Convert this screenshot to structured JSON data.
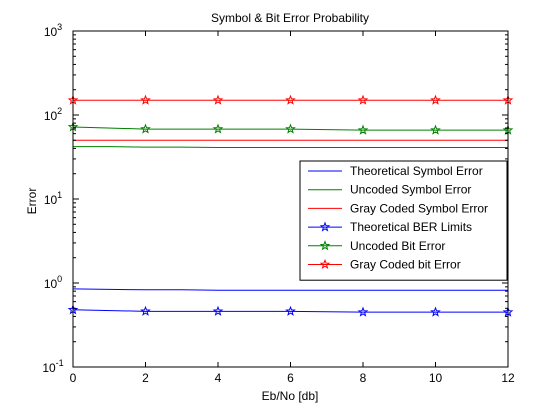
{
  "chart_data": {
    "type": "line",
    "title": "Symbol & Bit Error Probability",
    "xlabel": "Eb/No [db]",
    "ylabel": "Error",
    "yscale": "log",
    "xlim": [
      0,
      12
    ],
    "ylim": [
      0.1,
      1000
    ],
    "grid": false,
    "legend_position": "right",
    "x_ticks": [
      0,
      2,
      4,
      6,
      8,
      10,
      12
    ],
    "y_ticks": [
      {
        "value": 0.1,
        "base": "10",
        "exp": "-1"
      },
      {
        "value": 1,
        "base": "10",
        "exp": "0"
      },
      {
        "value": 10,
        "base": "10",
        "exp": "1"
      },
      {
        "value": 100,
        "base": "10",
        "exp": "2"
      },
      {
        "value": 1000,
        "base": "10",
        "exp": "3"
      }
    ],
    "series": [
      {
        "name": "Theoretical Symbol Error",
        "color": "#0000ff",
        "marker": "none",
        "x": [
          0,
          1,
          2,
          3,
          4,
          5,
          6,
          7,
          8,
          9,
          10,
          11,
          12
        ],
        "y": [
          0.85,
          0.84,
          0.83,
          0.83,
          0.82,
          0.82,
          0.82,
          0.82,
          0.82,
          0.82,
          0.82,
          0.82,
          0.82
        ]
      },
      {
        "name": "Uncoded Symbol Error",
        "color": "#008000",
        "marker": "none",
        "x": [
          0,
          1,
          2,
          3,
          4,
          5,
          6,
          7,
          8,
          9,
          10,
          11,
          12
        ],
        "y": [
          42,
          42,
          41.5,
          41.5,
          41,
          41,
          41,
          41,
          41,
          41,
          41,
          41,
          41
        ]
      },
      {
        "name": "Gray Coded Symbol Error",
        "color": "#ff0000",
        "marker": "none",
        "x": [
          0,
          1,
          2,
          3,
          4,
          5,
          6,
          7,
          8,
          9,
          10,
          11,
          12
        ],
        "y": [
          50,
          50,
          50,
          50,
          50,
          50,
          50,
          50,
          50,
          50,
          50,
          50,
          50
        ]
      },
      {
        "name": "Theoretical BER Limits",
        "color": "#0000ff",
        "marker": "star",
        "x": [
          0,
          2,
          4,
          6,
          8,
          10,
          12
        ],
        "y": [
          0.48,
          0.46,
          0.46,
          0.46,
          0.45,
          0.45,
          0.45
        ]
      },
      {
        "name": "Uncoded Bit Error",
        "color": "#008000",
        "marker": "star",
        "x": [
          0,
          2,
          4,
          6,
          8,
          10,
          12
        ],
        "y": [
          72,
          68,
          68,
          68,
          66,
          66,
          66
        ]
      },
      {
        "name": "Gray Coded bit Error",
        "color": "#ff0000",
        "marker": "star",
        "x": [
          0,
          2,
          4,
          6,
          8,
          10,
          12
        ],
        "y": [
          150,
          150,
          150,
          150,
          150,
          150,
          150
        ]
      }
    ]
  }
}
